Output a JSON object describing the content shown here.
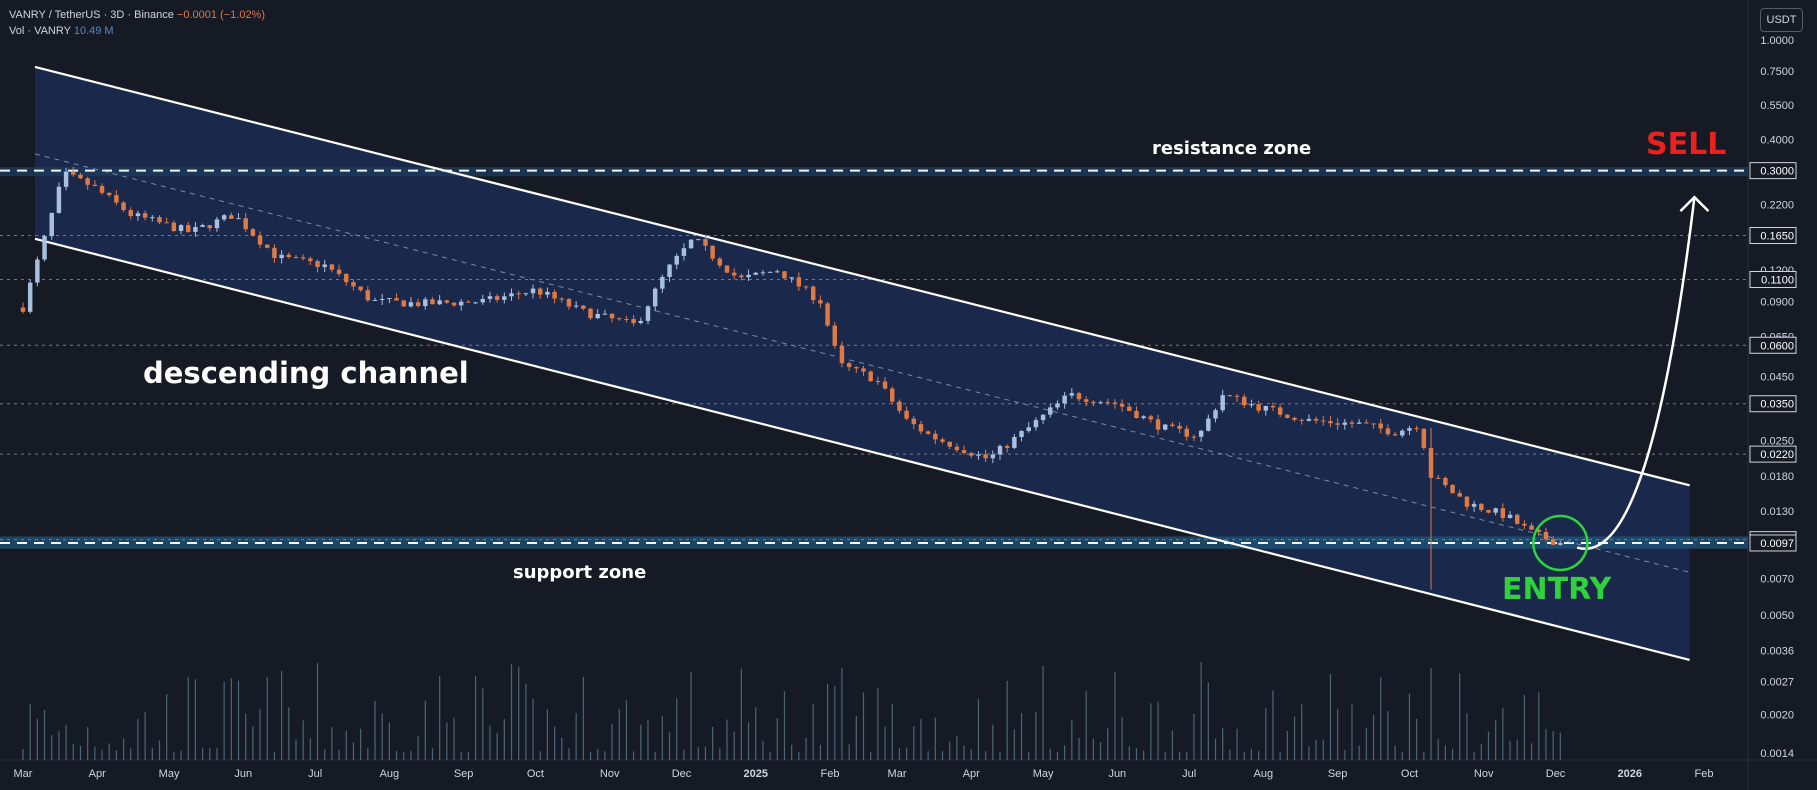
{
  "header": {
    "title": "VANRY / TetherUS · 3D · Binance",
    "change": "−0.0001 (−1.02%)",
    "vol_label": "Vol · VANRY",
    "vol_value": "10.49 M"
  },
  "price_axis": {
    "unit": "USDT",
    "ticks": [
      "1.0000",
      "0.7500",
      "0.5500",
      "0.4000",
      "0.2200",
      "0.1200",
      "0.0900",
      "0.0650",
      "0.0450",
      "0.0250",
      "0.0180",
      "0.0130",
      "0.0070",
      "0.0050",
      "0.0036",
      "0.0027",
      "0.0020",
      "0.0014"
    ]
  },
  "annotations": {
    "channel": "descending channel",
    "resistance": "resistance zone",
    "support": "support zone",
    "sell": "SELL",
    "entry": "ENTRY"
  },
  "colors": {
    "background": "#161a25",
    "up": "#a8bfe0",
    "down": "#e07a45",
    "channel_fill": "#1b2d52",
    "zone_fill": "#1a3a5c",
    "sell": "#e8231f",
    "entry": "#2fd23d",
    "volume": "#5f7f92"
  },
  "chart_data": {
    "type": "candlestick",
    "symbol": "VANRY / TetherUS",
    "interval": "3D",
    "exchange": "Binance",
    "y_scale": "log",
    "ylim": [
      0.0013,
      1.15
    ],
    "x_range": [
      "2024-03-01",
      "2026-02-20"
    ],
    "x_ticks": [
      {
        "label": "Mar",
        "date": "2024-03-01"
      },
      {
        "label": "Apr",
        "date": "2024-04-01"
      },
      {
        "label": "May",
        "date": "2024-05-01"
      },
      {
        "label": "Jun",
        "date": "2024-06-01"
      },
      {
        "label": "Jul",
        "date": "2024-07-01"
      },
      {
        "label": "Aug",
        "date": "2024-08-01"
      },
      {
        "label": "Sep",
        "date": "2024-09-01"
      },
      {
        "label": "Oct",
        "date": "2024-10-01"
      },
      {
        "label": "Nov",
        "date": "2024-11-01"
      },
      {
        "label": "Dec",
        "date": "2024-12-01"
      },
      {
        "label": "2025",
        "date": "2025-01-01"
      },
      {
        "label": "Feb",
        "date": "2025-02-01"
      },
      {
        "label": "Mar",
        "date": "2025-03-01"
      },
      {
        "label": "Apr",
        "date": "2025-04-01"
      },
      {
        "label": "May",
        "date": "2025-05-01"
      },
      {
        "label": "Jun",
        "date": "2025-06-01"
      },
      {
        "label": "Jul",
        "date": "2025-07-01"
      },
      {
        "label": "Aug",
        "date": "2025-08-01"
      },
      {
        "label": "Sep",
        "date": "2025-09-01"
      },
      {
        "label": "Oct",
        "date": "2025-10-01"
      },
      {
        "label": "Nov",
        "date": "2025-11-01"
      },
      {
        "label": "Dec",
        "date": "2025-12-01"
      },
      {
        "label": "2026",
        "date": "2026-01-01"
      },
      {
        "label": "Feb",
        "date": "2026-02-01"
      }
    ],
    "path_anchors": [
      [
        "2024-03-01",
        0.085
      ],
      [
        "2024-03-10",
        0.16
      ],
      [
        "2024-03-18",
        0.29
      ],
      [
        "2024-03-30",
        0.26
      ],
      [
        "2024-04-15",
        0.2
      ],
      [
        "2024-05-10",
        0.17
      ],
      [
        "2024-05-28",
        0.2
      ],
      [
        "2024-06-15",
        0.135
      ],
      [
        "2024-07-05",
        0.125
      ],
      [
        "2024-07-25",
        0.09
      ],
      [
        "2024-08-15",
        0.088
      ],
      [
        "2024-09-10",
        0.09
      ],
      [
        "2024-10-01",
        0.1
      ],
      [
        "2024-10-20",
        0.082
      ],
      [
        "2024-11-12",
        0.072
      ],
      [
        "2024-11-25",
        0.12
      ],
      [
        "2024-12-06",
        0.16
      ],
      [
        "2024-12-25",
        0.11
      ],
      [
        "2025-01-10",
        0.12
      ],
      [
        "2025-01-28",
        0.09
      ],
      [
        "2025-02-05",
        0.05
      ],
      [
        "2025-02-20",
        0.044
      ],
      [
        "2025-03-05",
        0.03
      ],
      [
        "2025-03-15",
        0.026
      ],
      [
        "2025-04-08",
        0.021
      ],
      [
        "2025-04-25",
        0.028
      ],
      [
        "2025-05-12",
        0.038
      ],
      [
        "2025-06-01",
        0.035
      ],
      [
        "2025-06-20",
        0.028
      ],
      [
        "2025-07-05",
        0.026
      ],
      [
        "2025-07-15",
        0.038
      ],
      [
        "2025-07-30",
        0.034
      ],
      [
        "2025-08-20",
        0.03
      ],
      [
        "2025-09-10",
        0.029
      ],
      [
        "2025-09-25",
        0.027
      ],
      [
        "2025-10-05",
        0.029
      ],
      [
        "2025-10-10",
        0.018
      ],
      [
        "2025-10-25",
        0.014
      ],
      [
        "2025-11-10",
        0.0125
      ],
      [
        "2025-11-22",
        0.0105
      ],
      [
        "2025-12-03",
        0.0097
      ]
    ],
    "levels": [
      {
        "label": "0.3000",
        "value": 0.3,
        "style": "dashed"
      },
      {
        "label": "0.1650",
        "value": 0.165,
        "style": "dotted"
      },
      {
        "label": "0.1100",
        "value": 0.11,
        "style": "dotted"
      },
      {
        "label": "0.0600",
        "value": 0.06,
        "style": "dotted"
      },
      {
        "label": "0.0350",
        "value": 0.035,
        "style": "dotted"
      },
      {
        "label": "0.0220",
        "value": 0.022,
        "style": "dotted"
      },
      {
        "label": "0.0100",
        "value": 0.01,
        "style": "dotted"
      },
      {
        "label": "0.0097",
        "value": 0.0097,
        "style": "dashed"
      }
    ],
    "resistance_zone": {
      "top": 0.31,
      "bottom": 0.285
    },
    "support_zone": {
      "top": 0.0103,
      "bottom": 0.0092
    },
    "channel": {
      "upper": [
        [
          "2024-03-06",
          0.78
        ],
        [
          "2026-01-26",
          0.0165
        ]
      ],
      "lower": [
        [
          "2024-03-06",
          0.16
        ],
        [
          "2026-01-26",
          0.0033
        ]
      ],
      "mid": [
        [
          "2024-03-06",
          0.35
        ],
        [
          "2026-01-26",
          0.0074
        ]
      ]
    },
    "projection": {
      "from": [
        "2025-12-10",
        0.0093
      ],
      "to": [
        "2026-01-28",
        0.235
      ]
    },
    "entry_marker": [
      "2025-12-03",
      0.0097
    ]
  }
}
